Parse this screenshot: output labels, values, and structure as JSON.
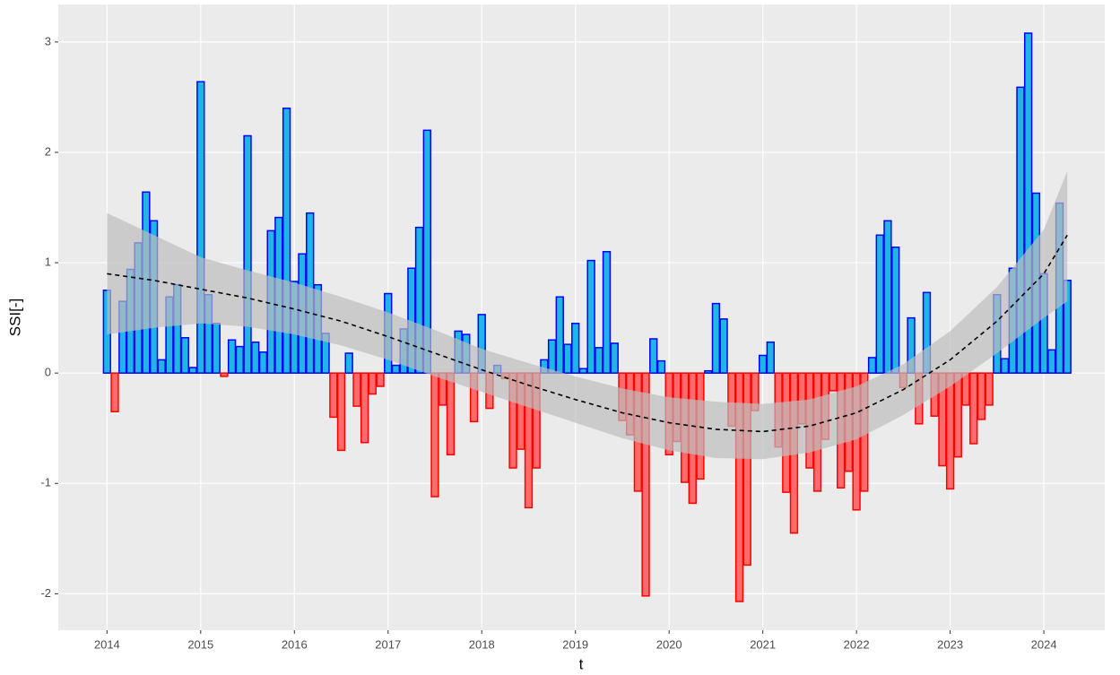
{
  "chart_data": {
    "type": "bar",
    "xlabel": "t",
    "ylabel": "SSI[-]",
    "xlim": [
      2013.48,
      2024.65
    ],
    "ylim": [
      -2.33,
      3.34
    ],
    "xticks": [
      2014,
      2015,
      2016,
      2017,
      2018,
      2019,
      2020,
      2021,
      2022,
      2023,
      2024
    ],
    "yticks": [
      -2,
      -1,
      0,
      1,
      2,
      3
    ],
    "grid": true,
    "bar_width_years": 0.075,
    "colors": {
      "positive_fill": "#1fb6e6",
      "positive_border": "#0000ff",
      "negative_fill": "#ff6b6b",
      "negative_border": "#ff0000",
      "background": "#ebebeb",
      "grid": "#ffffff",
      "band": "#bdbdbd",
      "trend": "#000000"
    },
    "x": [
      2014,
      2014.083,
      2014.167,
      2014.25,
      2014.333,
      2014.417,
      2014.5,
      2014.583,
      2014.667,
      2014.75,
      2014.833,
      2014.917,
      2015,
      2015.083,
      2015.167,
      2015.25,
      2015.333,
      2015.417,
      2015.5,
      2015.583,
      2015.667,
      2015.75,
      2015.833,
      2015.917,
      2016,
      2016.083,
      2016.167,
      2016.25,
      2016.333,
      2016.417,
      2016.5,
      2016.583,
      2016.667,
      2016.75,
      2016.833,
      2016.917,
      2017,
      2017.083,
      2017.167,
      2017.25,
      2017.333,
      2017.417,
      2017.5,
      2017.583,
      2017.667,
      2017.75,
      2017.833,
      2017.917,
      2018,
      2018.083,
      2018.167,
      2018.25,
      2018.333,
      2018.417,
      2018.5,
      2018.583,
      2018.667,
      2018.75,
      2018.833,
      2018.917,
      2019,
      2019.083,
      2019.167,
      2019.25,
      2019.333,
      2019.417,
      2019.5,
      2019.583,
      2019.667,
      2019.75,
      2019.833,
      2019.917,
      2020,
      2020.083,
      2020.167,
      2020.25,
      2020.333,
      2020.417,
      2020.5,
      2020.583,
      2020.667,
      2020.75,
      2020.833,
      2020.917,
      2021,
      2021.083,
      2021.167,
      2021.25,
      2021.333,
      2021.417,
      2021.5,
      2021.583,
      2021.667,
      2021.75,
      2021.833,
      2021.917,
      2022,
      2022.083,
      2022.167,
      2022.25,
      2022.333,
      2022.417,
      2022.5,
      2022.583,
      2022.667,
      2022.75,
      2022.833,
      2022.917,
      2023,
      2023.083,
      2023.167,
      2023.25,
      2023.333,
      2023.417,
      2023.5,
      2023.583,
      2023.667,
      2023.75,
      2023.833,
      2023.917,
      2024,
      2024.083,
      2024.167,
      2024.25
    ],
    "values": [
      0.75,
      -0.35,
      0.65,
      0.94,
      1.18,
      1.64,
      1.38,
      0.12,
      0.69,
      0.8,
      0.32,
      0.05,
      2.64,
      0.71,
      0.45,
      -0.03,
      0.3,
      0.24,
      2.15,
      0.28,
      0.19,
      1.29,
      1.41,
      2.4,
      0.83,
      1.08,
      1.45,
      0.8,
      0.36,
      -0.4,
      -0.7,
      0.18,
      -0.3,
      -0.63,
      -0.19,
      -0.12,
      0.72,
      0.07,
      0.4,
      0.95,
      1.32,
      2.2,
      -1.12,
      -0.29,
      -0.74,
      0.38,
      0.35,
      -0.44,
      0.53,
      -0.32,
      0.07,
      -0.05,
      -0.86,
      -0.69,
      -1.22,
      -0.86,
      0.12,
      0.3,
      0.69,
      0.26,
      0.45,
      0.04,
      1.02,
      0.23,
      1.1,
      0.27,
      -0.43,
      -0.56,
      -1.07,
      -2.02,
      0.31,
      0.11,
      -0.74,
      -0.62,
      -0.99,
      -1.18,
      -0.96,
      0.02,
      0.63,
      0.49,
      -0.48,
      -2.07,
      -1.74,
      -0.34,
      0.16,
      0.28,
      -0.67,
      -1.08,
      -1.45,
      -0.46,
      -0.86,
      -1.07,
      -0.6,
      -0.16,
      -1.04,
      -0.89,
      -1.24,
      -1.07,
      0.14,
      1.25,
      1.38,
      1.14,
      -0.13,
      0.5,
      -0.46,
      0.73,
      -0.39,
      -0.84,
      -1.05,
      -0.76,
      -0.29,
      -0.64,
      -0.42,
      -0.29,
      0.71,
      0.13,
      0.95,
      2.59,
      3.08,
      1.63,
      0.9,
      0.21,
      1.54,
      0.84
    ],
    "trend": {
      "x": [
        2014,
        2014.5,
        2015,
        2015.5,
        2016,
        2016.5,
        2017,
        2017.5,
        2018,
        2018.5,
        2019,
        2019.5,
        2020,
        2020.5,
        2021,
        2021.5,
        2022,
        2022.5,
        2023,
        2023.5,
        2024,
        2024.25
      ],
      "values": [
        0.9,
        0.84,
        0.76,
        0.68,
        0.58,
        0.47,
        0.33,
        0.18,
        0.03,
        -0.11,
        -0.24,
        -0.36,
        -0.45,
        -0.51,
        -0.53,
        -0.48,
        -0.36,
        -0.15,
        0.12,
        0.47,
        0.9,
        1.25
      ],
      "lower": [
        0.35,
        0.41,
        0.45,
        0.42,
        0.35,
        0.25,
        0.12,
        -0.03,
        -0.17,
        -0.31,
        -0.45,
        -0.59,
        -0.7,
        -0.77,
        -0.78,
        -0.72,
        -0.6,
        -0.38,
        -0.12,
        0.18,
        0.5,
        0.65
      ],
      "upper": [
        1.45,
        1.25,
        1.05,
        0.93,
        0.82,
        0.69,
        0.55,
        0.39,
        0.22,
        0.09,
        -0.03,
        -0.14,
        -0.22,
        -0.26,
        -0.28,
        -0.24,
        -0.12,
        0.08,
        0.38,
        0.78,
        1.3,
        1.83
      ]
    }
  }
}
